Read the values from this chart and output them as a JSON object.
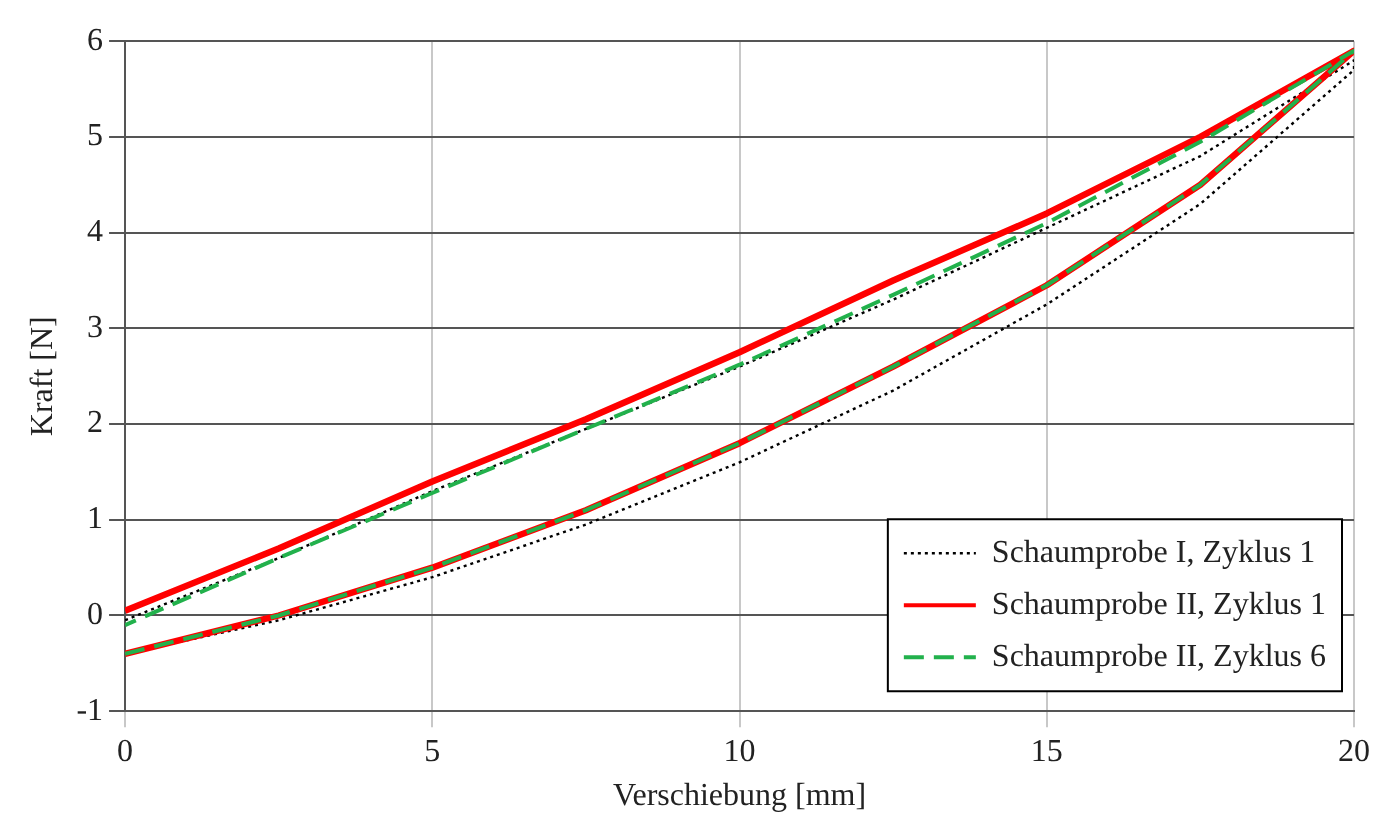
{
  "chart_data": {
    "type": "line",
    "xlabel": "Verschiebung [mm]",
    "ylabel": "Kraft [N]",
    "xlim": [
      0,
      20
    ],
    "xticks": [
      0,
      5,
      10,
      15,
      20
    ],
    "ylim": [
      -1,
      6
    ],
    "yticks": [
      -1,
      0,
      1,
      2,
      3,
      4,
      5,
      6
    ],
    "grid": true,
    "legend": "bottom right",
    "marker": "none",
    "series": [
      {
        "name": "Schaumprobe I, Zyklus 1",
        "color": "#000000",
        "line_style": "dotted",
        "x": [
          0,
          2.5,
          5,
          7.5,
          10,
          12.5,
          15,
          17.5,
          20,
          20,
          17.5,
          15,
          12.5,
          10,
          7.5,
          5,
          2.5,
          0
        ],
        "values": [
          -0.4,
          -0.05,
          0.4,
          0.95,
          1.6,
          2.35,
          3.25,
          4.3,
          5.7,
          5.8,
          4.8,
          4.05,
          3.3,
          2.6,
          1.95,
          1.3,
          0.6,
          -0.05
        ]
      },
      {
        "name": "Schaumprobe II, Zyklus 1",
        "color": "#ff0000",
        "line_style": "solid",
        "x": [
          0,
          2.5,
          5,
          7.5,
          10,
          12.5,
          15,
          17.5,
          20,
          17.5,
          15,
          12.5,
          10,
          7.5,
          5,
          2.5,
          0
        ],
        "values": [
          -0.4,
          0.0,
          0.5,
          1.1,
          1.8,
          2.6,
          3.45,
          4.5,
          5.9,
          5.0,
          4.2,
          3.5,
          2.75,
          2.05,
          1.4,
          0.7,
          0.05
        ]
      },
      {
        "name": "Schaumprobe II, Zyklus 6",
        "color": "#22b14c",
        "line_style": "dashed",
        "x": [
          0,
          2.5,
          5,
          7.5,
          10,
          12.5,
          15,
          17.5,
          20,
          17.5,
          15,
          12.5,
          10,
          7.5,
          5,
          2.5,
          0
        ],
        "values": [
          -0.4,
          0.0,
          0.5,
          1.1,
          1.8,
          2.6,
          3.45,
          4.5,
          5.9,
          4.95,
          4.1,
          3.35,
          2.62,
          1.95,
          1.28,
          0.6,
          -0.1
        ]
      }
    ]
  }
}
